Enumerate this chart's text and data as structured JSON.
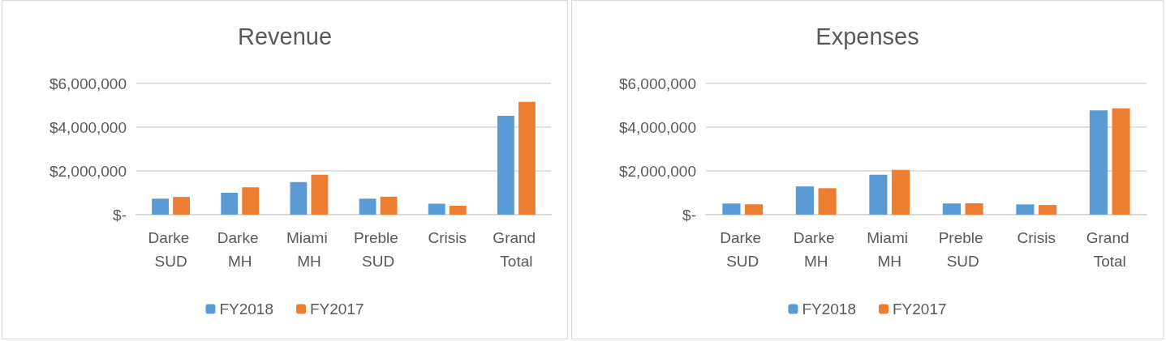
{
  "chart_data": [
    {
      "type": "bar",
      "title": "Revenue",
      "categories": [
        "Darke SUD",
        "Darke MH",
        "Miami MH",
        "Preble SUD",
        "Crisis",
        "Grand Total"
      ],
      "series": [
        {
          "name": "FY2018",
          "color": "#5b9bd5",
          "values": [
            730000,
            1000000,
            1490000,
            730000,
            500000,
            4520000
          ]
        },
        {
          "name": "FY2017",
          "color": "#ed7d31",
          "values": [
            810000,
            1250000,
            1820000,
            820000,
            410000,
            5160000
          ]
        }
      ],
      "ylim": [
        0,
        6000000
      ],
      "yticks": [
        {
          "value": 0,
          "label": "$-"
        },
        {
          "value": 2000000,
          "label": "$2,000,000"
        },
        {
          "value": 4000000,
          "label": "$4,000,000"
        },
        {
          "value": 6000000,
          "label": "$6,000,000"
        }
      ],
      "grid": "y",
      "legend": "bottom"
    },
    {
      "type": "bar",
      "title": "Expenses",
      "categories": [
        "Darke SUD",
        "Darke MH",
        "Miami MH",
        "Preble SUD",
        "Crisis",
        "Grand Total"
      ],
      "series": [
        {
          "name": "FY2018",
          "color": "#5b9bd5",
          "values": [
            510000,
            1290000,
            1820000,
            510000,
            470000,
            4770000
          ]
        },
        {
          "name": "FY2017",
          "color": "#ed7d31",
          "values": [
            470000,
            1210000,
            2050000,
            520000,
            440000,
            4860000
          ]
        }
      ],
      "ylim": [
        0,
        6000000
      ],
      "yticks": [
        {
          "value": 0,
          "label": "$-"
        },
        {
          "value": 2000000,
          "label": "$2,000,000"
        },
        {
          "value": 4000000,
          "label": "$4,000,000"
        },
        {
          "value": 6000000,
          "label": "$6,000,000"
        }
      ],
      "grid": "y",
      "legend": "bottom"
    }
  ]
}
